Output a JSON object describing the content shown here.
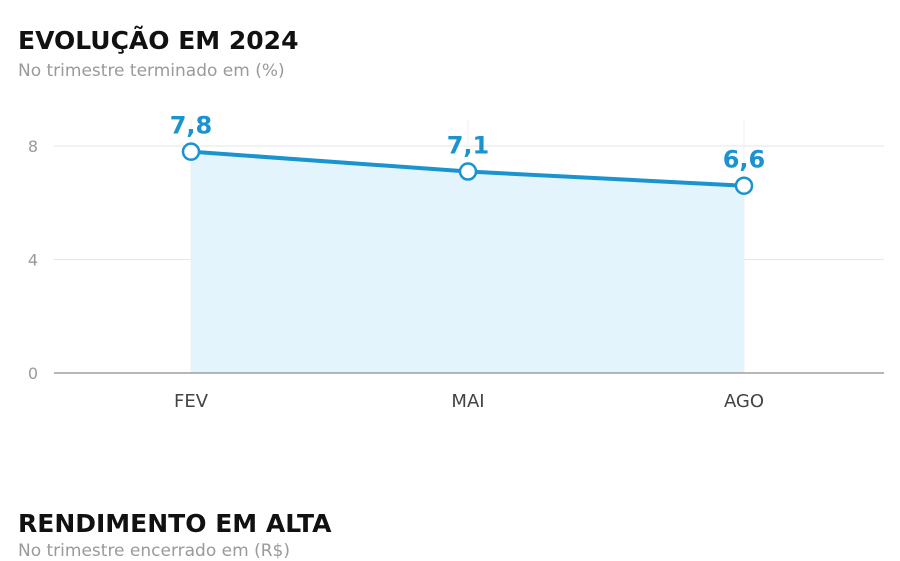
{
  "chart_data": {
    "type": "line",
    "title": "EVOLUÇÃO EM 2024",
    "subtitle": "No trimestre terminado em (%)",
    "categories": [
      "FEV",
      "MAI",
      "AGO"
    ],
    "values": [
      7.8,
      7.1,
      6.6
    ],
    "data_labels": [
      "7,8",
      "7,1",
      "6,6"
    ],
    "yticks": [
      0,
      4,
      8
    ],
    "ylim": [
      0,
      9
    ],
    "grid": true,
    "filled_area": true,
    "colors": {
      "line": "#1a93cf",
      "fill": "#e3f4fc",
      "grid": "#e6e6e6",
      "axis": "#8c8c8c",
      "tick_text": "#9a9a9a",
      "category_text": "#444444"
    }
  },
  "second_chart": {
    "title": "RENDIMENTO EM ALTA",
    "subtitle": "No trimestre encerrado em (R$)"
  }
}
